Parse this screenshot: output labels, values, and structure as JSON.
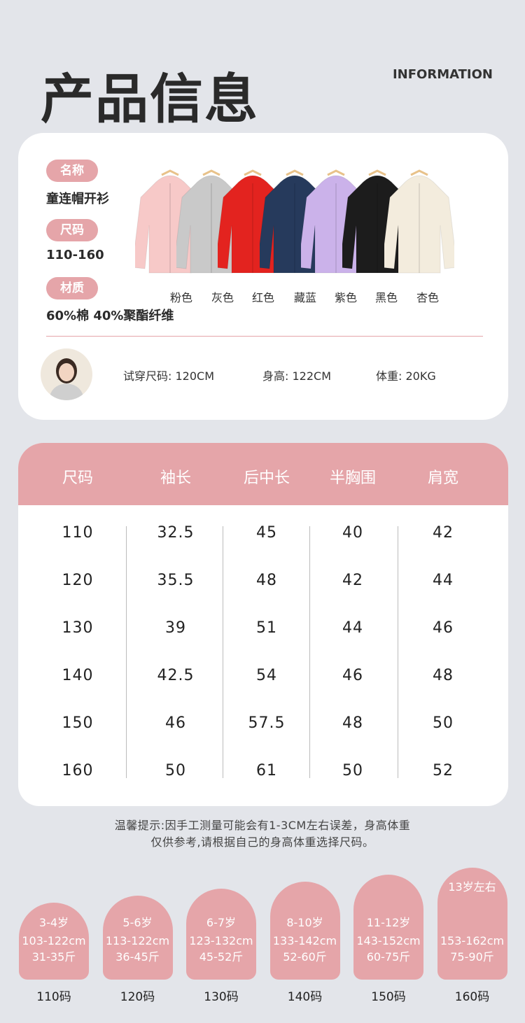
{
  "header": {
    "title": "产品信息",
    "subtitle": "INFORMATION"
  },
  "product": {
    "name_label": "名称",
    "name": "童连帽开衫",
    "size_label": "尺码",
    "size": "110-160",
    "material_label": "材质",
    "material": "60%棉 40%聚酯纤维",
    "colors": [
      {
        "label": "粉色",
        "hex": "#f7c9c8"
      },
      {
        "label": "灰色",
        "hex": "#c9c9c9"
      },
      {
        "label": "红色",
        "hex": "#e3231f"
      },
      {
        "label": "藏蓝",
        "hex": "#263a5c"
      },
      {
        "label": "紫色",
        "hex": "#cbb2ea"
      },
      {
        "label": "黑色",
        "hex": "#1c1c1c"
      },
      {
        "label": "杏色",
        "hex": "#f3ecdd"
      }
    ]
  },
  "model": {
    "trial_size": "试穿尺码: 120CM",
    "height": "身高: 122CM",
    "weight": "体重: 20KG"
  },
  "size_table": {
    "headers": [
      "尺码",
      "袖长",
      "后中长",
      "半胸围",
      "肩宽"
    ],
    "rows": [
      [
        "110",
        "32.5",
        "45",
        "40",
        "42"
      ],
      [
        "120",
        "35.5",
        "48",
        "42",
        "44"
      ],
      [
        "130",
        "39",
        "51",
        "44",
        "46"
      ],
      [
        "140",
        "42.5",
        "54",
        "46",
        "48"
      ],
      [
        "150",
        "46",
        "57.5",
        "48",
        "50"
      ],
      [
        "160",
        "50",
        "61",
        "50",
        "52"
      ]
    ]
  },
  "note": {
    "line1": "温馨提示:因手工测量可能会有1-3CM左右误差，身高体重",
    "line2": "仅供参考,请根据自己的身高体重选择尺码。"
  },
  "guide": [
    {
      "age": "3-4岁",
      "height": "103-122cm",
      "weight": "31-35斤",
      "size": "110码"
    },
    {
      "age": "5-6岁",
      "height": "113-122cm",
      "weight": "36-45斤",
      "size": "120码"
    },
    {
      "age": "6-7岁",
      "height": "123-132cm",
      "weight": "45-52斤",
      "size": "130码"
    },
    {
      "age": "8-10岁",
      "height": "133-142cm",
      "weight": "52-60斤",
      "size": "140码"
    },
    {
      "age": "11-12岁",
      "height": "143-152cm",
      "weight": "60-75斤",
      "size": "150码"
    },
    {
      "age": "13岁左右",
      "height": "153-162cm",
      "weight": "75-90斤",
      "size": "160码"
    }
  ],
  "colors": {
    "accent": "#e5a5a9",
    "background": "#e3e5ea"
  }
}
